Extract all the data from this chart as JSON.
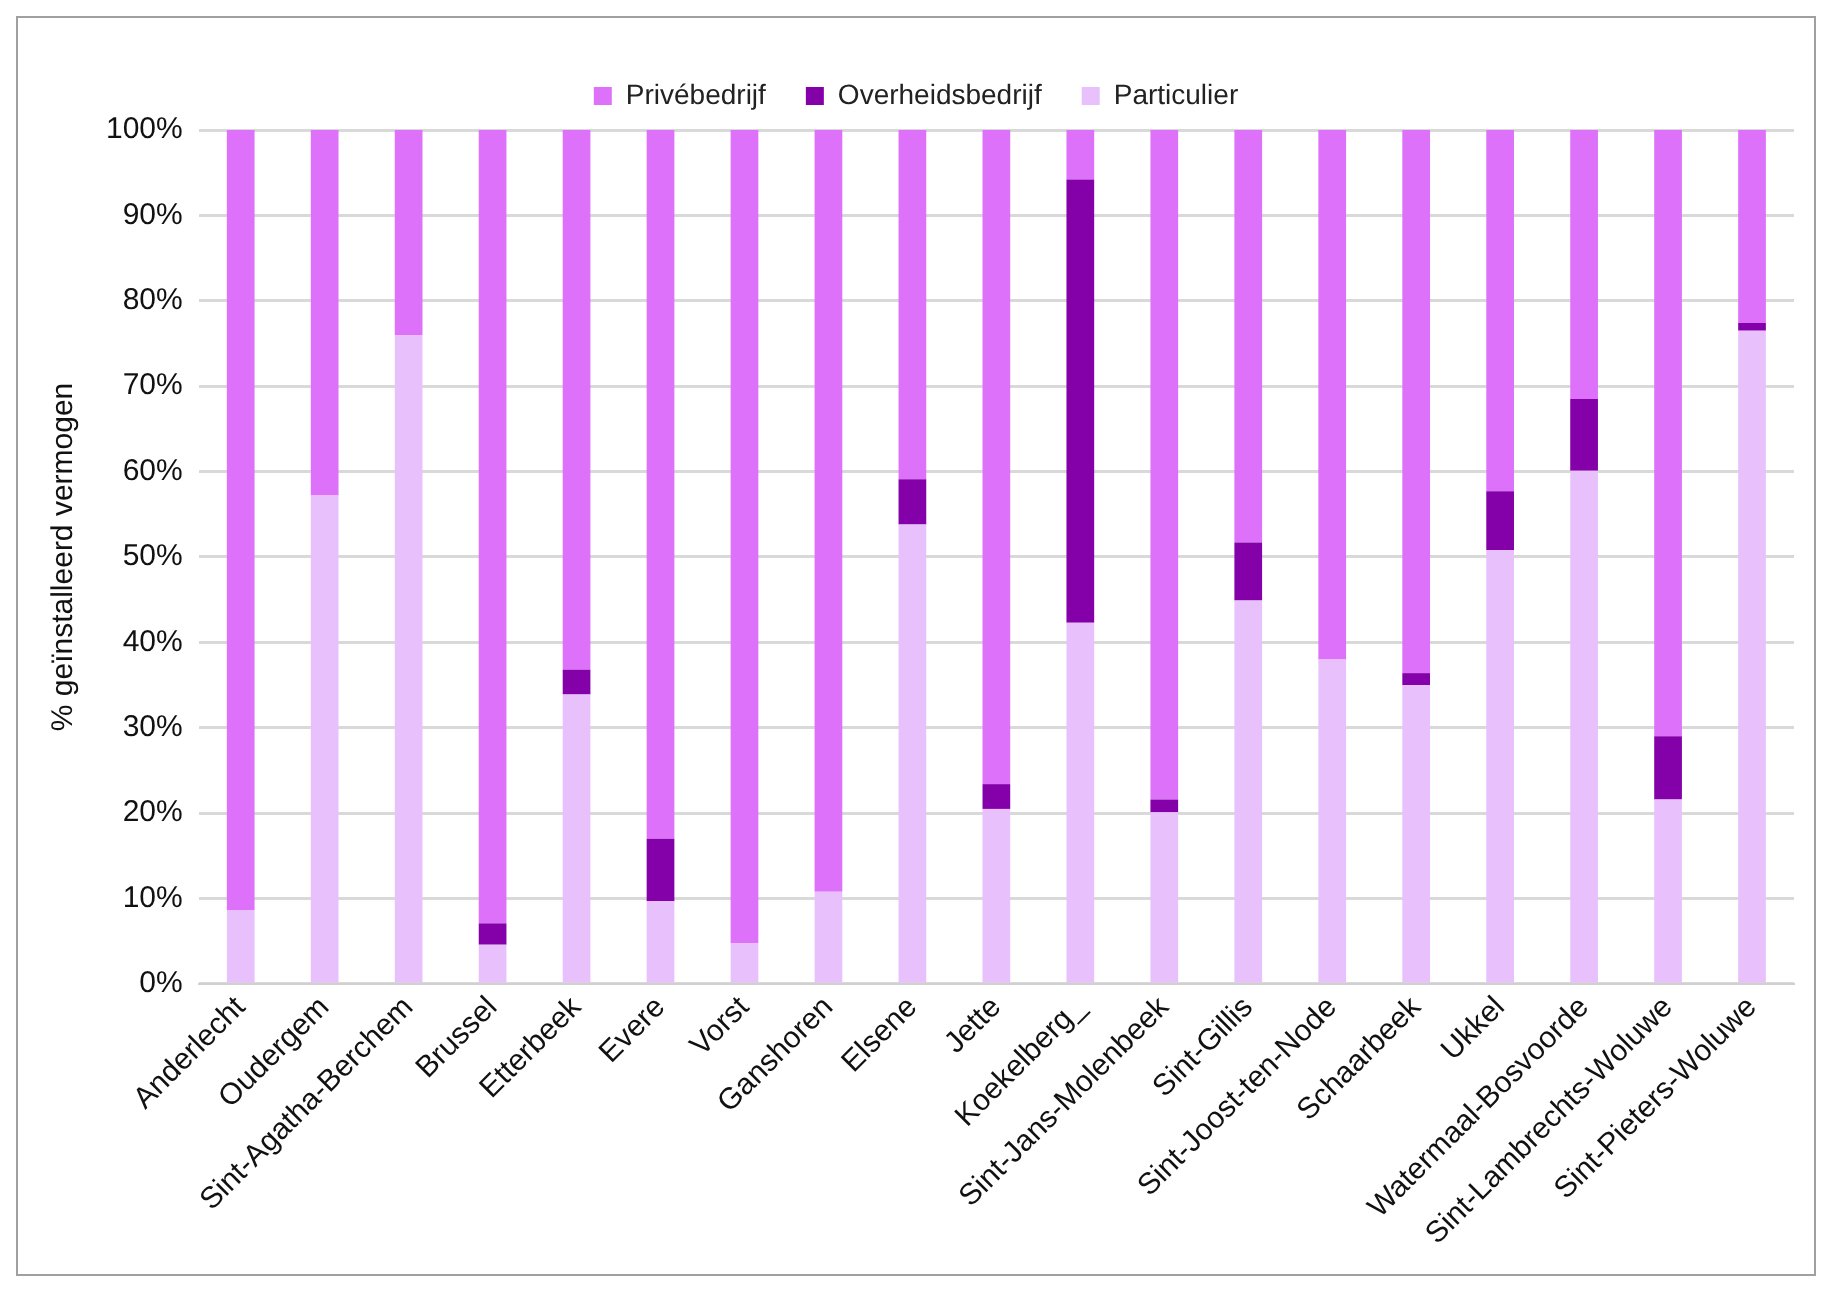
{
  "chart_data": {
    "type": "bar",
    "stacked": true,
    "ylabel": "% geïnstalleerd vermogen",
    "categories": [
      "Anderlecht",
      "Oudergem",
      "Sint-Agatha-Berchem",
      "Brussel",
      "Etterbeek",
      "Evere",
      "Vorst",
      "Ganshoren",
      "Elsene",
      "Jette",
      "Koekelberg_",
      "Sint-Jans-Molenbeek",
      "Sint-Gillis",
      "Sint-Joost-ten-Node",
      "Schaarbeek",
      "Ukkel",
      "Watermaal-Bosvoorde",
      "Sint-Lambrechts-Woluwe",
      "Sint-Pieters-Woluwe"
    ],
    "series": [
      {
        "name": "Particulier",
        "color": "#e8c1fc",
        "values": [
          8.6,
          57.2,
          76.0,
          4.6,
          33.9,
          9.7,
          4.8,
          10.8,
          53.8,
          20.5,
          42.3,
          20.1,
          44.9,
          38.0,
          35.0,
          50.8,
          60.1,
          21.6,
          76.5
        ]
      },
      {
        "name": "Overheidsbedrijf",
        "color": "#8400a8",
        "values": [
          0,
          0,
          0,
          2.5,
          2.9,
          7.3,
          0,
          0,
          5.3,
          2.9,
          51.9,
          1.5,
          6.8,
          0,
          1.4,
          6.9,
          8.4,
          7.4,
          0.9
        ]
      },
      {
        "name": "Privébedrijf",
        "color": "#dd71fa",
        "values": [
          91.4,
          42.8,
          24.0,
          92.9,
          63.2,
          83.0,
          95.2,
          89.2,
          40.9,
          76.6,
          5.8,
          78.4,
          48.3,
          62.0,
          63.6,
          42.3,
          31.5,
          71.0,
          22.6
        ]
      }
    ],
    "ylim": [
      0,
      100
    ],
    "yticks": [
      {
        "value": 0,
        "label": "0%"
      },
      {
        "value": 10,
        "label": "10%"
      },
      {
        "value": 20,
        "label": "20%"
      },
      {
        "value": 30,
        "label": "30%"
      },
      {
        "value": 40,
        "label": "40%"
      },
      {
        "value": 50,
        "label": "50%"
      },
      {
        "value": 60,
        "label": "60%"
      },
      {
        "value": 70,
        "label": "70%"
      },
      {
        "value": 80,
        "label": "80%"
      },
      {
        "value": 90,
        "label": "90%"
      },
      {
        "value": 100,
        "label": "100%"
      }
    ],
    "grid": "y",
    "legend": "top"
  }
}
